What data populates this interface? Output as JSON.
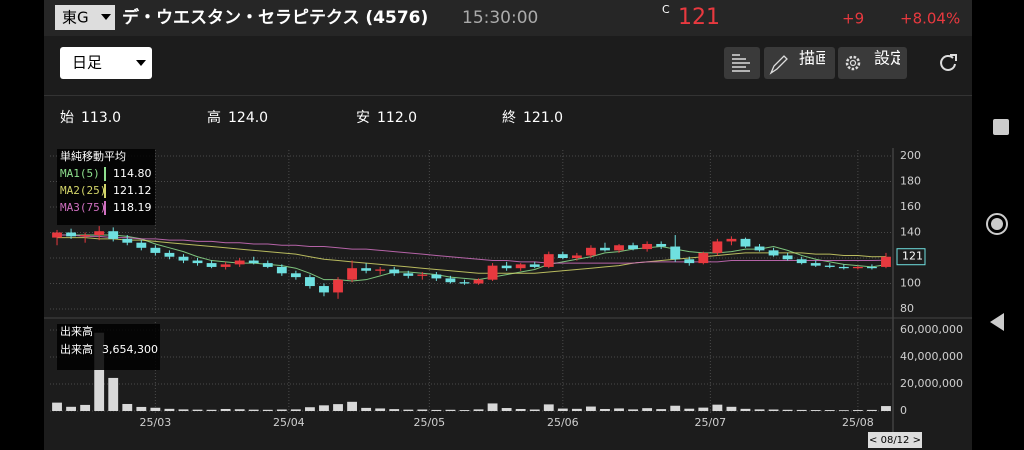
{
  "header": {
    "market": "東G",
    "title": "デ・ウエスタン・セラピテクス (4576)",
    "time": "15:30:00",
    "price_flag": "C",
    "price": "121",
    "change": "+9",
    "change_pct": "+8.04%"
  },
  "toolbar": {
    "period": "日足",
    "draw": "描画",
    "settings": "設定"
  },
  "ohlc": [
    {
      "label": "始",
      "value": "113.0"
    },
    {
      "label": "高",
      "value": "124.0"
    },
    {
      "label": "安",
      "value": "112.0"
    },
    {
      "label": "終",
      "value": "121.0"
    }
  ],
  "chart_data": {
    "type": "candlestick",
    "ma_title": "単純移動平均",
    "volume_title": "出来高",
    "volume_label": "出来高",
    "volume_current": "3,654,300",
    "date_label": "< 08/12 >",
    "up_color": "#e8393f",
    "down_color": "#6fe0e0",
    "volume_color": "#d8d8d8",
    "grid": true,
    "categories": [
      null,
      null,
      null,
      null,
      null,
      null,
      null,
      null,
      null,
      null,
      null,
      null,
      null,
      null,
      null,
      null,
      null,
      null,
      null,
      null,
      null,
      null,
      null,
      null,
      null,
      null,
      null,
      null,
      null,
      null,
      null,
      null,
      null,
      null,
      null,
      null,
      null,
      null,
      null,
      null,
      null,
      null,
      null,
      null,
      null,
      null,
      null,
      null,
      null,
      null,
      null,
      null,
      null,
      null,
      null,
      null,
      null,
      null,
      null,
      null
    ],
    "open": [
      136,
      140,
      137,
      138,
      141,
      135,
      132,
      128,
      124,
      121,
      118,
      116,
      113,
      115,
      118,
      116,
      113,
      108,
      105,
      98,
      93,
      103,
      112,
      110,
      111,
      108,
      106,
      107,
      104,
      101,
      100,
      103,
      114,
      112,
      115,
      113,
      123,
      120,
      122,
      128,
      126,
      130,
      127,
      131,
      129,
      119,
      116,
      124,
      133,
      135,
      129,
      126,
      122,
      119,
      116,
      114,
      113,
      112,
      113,
      113
    ],
    "high": [
      142,
      143,
      140,
      145,
      144,
      138,
      134,
      130,
      126,
      123,
      120,
      118,
      117,
      120,
      121,
      118,
      115,
      110,
      107,
      100,
      105,
      118,
      116,
      113,
      113,
      110,
      109,
      109,
      106,
      103,
      104,
      116,
      117,
      116,
      117,
      125,
      125,
      124,
      130,
      132,
      131,
      132,
      133,
      133,
      138,
      121,
      125,
      135,
      137,
      136,
      131,
      128,
      124,
      121,
      118,
      116,
      115,
      114,
      115,
      124
    ],
    "low": [
      130,
      135,
      132,
      134,
      133,
      130,
      126,
      122,
      119,
      116,
      114,
      112,
      111,
      113,
      115,
      112,
      106,
      103,
      96,
      90,
      88,
      101,
      108,
      107,
      106,
      104,
      103,
      102,
      100,
      99,
      99,
      102,
      110,
      110,
      112,
      112,
      119,
      118,
      120,
      125,
      124,
      126,
      125,
      127,
      117,
      114,
      115,
      122,
      130,
      128,
      125,
      121,
      118,
      115,
      113,
      112,
      111,
      111,
      111,
      112
    ],
    "close": [
      140,
      137,
      138,
      141,
      135,
      132,
      128,
      124,
      121,
      118,
      116,
      113,
      115,
      118,
      116,
      113,
      108,
      105,
      98,
      93,
      103,
      112,
      110,
      111,
      108,
      106,
      107,
      104,
      101,
      100,
      103,
      114,
      112,
      115,
      113,
      123,
      120,
      122,
      128,
      126,
      130,
      127,
      131,
      129,
      119,
      116,
      124,
      133,
      135,
      129,
      126,
      122,
      119,
      116,
      114,
      113,
      112,
      113,
      112,
      121
    ],
    "volume": [
      6200000,
      3100000,
      4500000,
      58000000,
      24500000,
      5200000,
      3000000,
      2400000,
      1600000,
      1200000,
      1000000,
      900000,
      1500000,
      1300000,
      1000000,
      900000,
      1100000,
      1200000,
      2800000,
      4200000,
      5100000,
      6800000,
      2300000,
      1900000,
      1400000,
      1000000,
      1100000,
      800000,
      900000,
      700000,
      1200000,
      5600000,
      2200000,
      1500000,
      1100000,
      4900000,
      1800000,
      1600000,
      3300000,
      1500000,
      1900000,
      1200000,
      2100000,
      1400000,
      3900000,
      1700000,
      2500000,
      4700000,
      3100000,
      1600000,
      1200000,
      1100000,
      900000,
      800000,
      700000,
      700000,
      600000,
      700000,
      800000,
      3654300
    ],
    "series": [
      {
        "name": "MA1(5)",
        "color": "#8ee08e",
        "latest": "114.80",
        "values": [
          138,
          138,
          138,
          138,
          138,
          137,
          135,
          131,
          128,
          125,
          121,
          118,
          117,
          116,
          116,
          115,
          114,
          112,
          108,
          103,
          103,
          102,
          103,
          106,
          109,
          109,
          108,
          107,
          105,
          104,
          103,
          105,
          107,
          109,
          111,
          115,
          117,
          119,
          121,
          124,
          125,
          127,
          128,
          129,
          127,
          125,
          124,
          124,
          125,
          127,
          127,
          129,
          126,
          122,
          119,
          117,
          115,
          114,
          113,
          114.8
        ]
      },
      {
        "name": "MA2(25)",
        "color": "#d4d66a",
        "latest": "121.12",
        "values": [
          136,
          136,
          136,
          135,
          135,
          134,
          134,
          133,
          132,
          131,
          130,
          129,
          128,
          127,
          126,
          125,
          124,
          123,
          121,
          119,
          118,
          117,
          116,
          115,
          114,
          113,
          112,
          111,
          110,
          109,
          108,
          108,
          108,
          108,
          108,
          109,
          110,
          111,
          112,
          113,
          114,
          116,
          117,
          118,
          119,
          120,
          121,
          122,
          123,
          124,
          124,
          124,
          124,
          124,
          123,
          123,
          122,
          122,
          121,
          121.12
        ]
      },
      {
        "name": "MA3(75)",
        "color": "#d070c0",
        "latest": "118.19",
        "values": [
          138,
          138,
          137,
          137,
          136,
          136,
          135,
          135,
          134,
          134,
          133,
          133,
          132,
          132,
          131,
          131,
          130,
          130,
          129,
          129,
          128,
          127,
          127,
          126,
          125,
          124,
          123,
          122,
          121,
          120,
          119,
          118,
          118,
          117,
          117,
          116,
          116,
          116,
          116,
          116,
          116,
          116,
          117,
          117,
          117,
          117,
          117,
          117,
          118,
          118,
          118,
          118,
          118,
          118,
          118,
          118,
          118,
          118,
          118,
          118.19
        ]
      }
    ],
    "xlim": [
      -0.5,
      59.5
    ],
    "xticks": [
      {
        "value": 7,
        "label": "25/03"
      },
      {
        "value": 16.5,
        "label": "25/04"
      },
      {
        "value": 26.5,
        "label": "25/05"
      },
      {
        "value": 36,
        "label": "25/06"
      },
      {
        "value": 46.5,
        "label": "25/07"
      },
      {
        "value": 57,
        "label": "25/08"
      }
    ],
    "ylim": [
      80,
      200
    ],
    "yticks": [
      80,
      100,
      120,
      140,
      160,
      180,
      200
    ],
    "volume_ylim": [
      0,
      60000000
    ],
    "volume_yticks": [
      0,
      {
        "value": 20000000,
        "label": "20,000,000"
      },
      {
        "value": 40000000,
        "label": "40,000,000"
      },
      {
        "value": 60000000,
        "label": "60,000,000"
      }
    ]
  }
}
